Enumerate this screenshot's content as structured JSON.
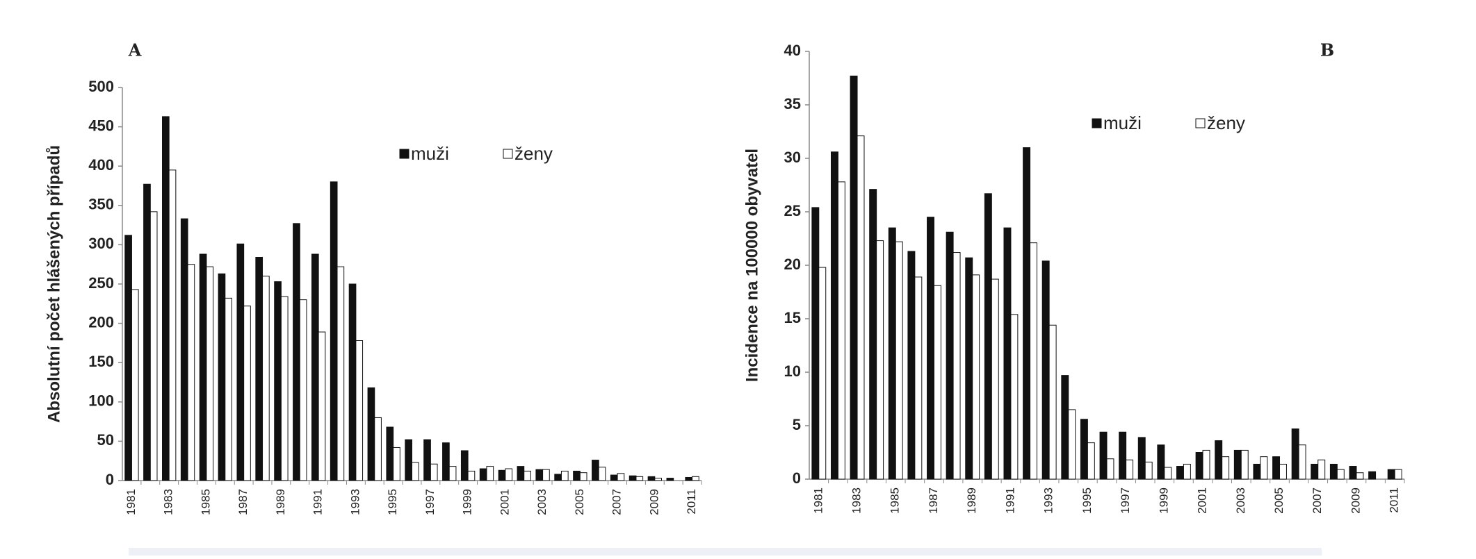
{
  "chart_data": [
    {
      "type": "bar",
      "label": "A",
      "y_label": "Absolutní počet hlášených případů",
      "categories": [
        "1981",
        null,
        "1983",
        null,
        "1985",
        null,
        "1987",
        null,
        "1989",
        null,
        "1991",
        null,
        "1993",
        null,
        "1995",
        null,
        "1997",
        null,
        "1999",
        null,
        "2001",
        null,
        "2003",
        null,
        "2005",
        null,
        "2007",
        null,
        "2009",
        null,
        "2011"
      ],
      "series": [
        {
          "name": "muži",
          "color": "#111111",
          "values": [
            312,
            377,
            463,
            333,
            288,
            263,
            301,
            284,
            253,
            327,
            288,
            380,
            250,
            118,
            68,
            52,
            52,
            48,
            38,
            15,
            13,
            18,
            14,
            8,
            12,
            26,
            7,
            6,
            5,
            3,
            4
          ]
        },
        {
          "name": "ženy",
          "color": "#ffffff",
          "values": [
            243,
            342,
            395,
            275,
            272,
            232,
            222,
            260,
            234,
            230,
            189,
            272,
            178,
            80,
            42,
            23,
            21,
            18,
            12,
            18,
            15,
            12,
            14,
            12,
            10,
            17,
            9,
            5,
            3,
            0,
            5
          ]
        }
      ],
      "ylim": [
        0,
        500
      ],
      "yticks": [
        0,
        50,
        100,
        150,
        200,
        250,
        300,
        350,
        400,
        450,
        500
      ]
    },
    {
      "type": "bar",
      "label": "B",
      "y_label": "Incidence na 100000 obyvatel",
      "categories": [
        "1981",
        null,
        "1983",
        null,
        "1985",
        null,
        "1987",
        null,
        "1989",
        null,
        "1991",
        null,
        "1993",
        null,
        "1995",
        null,
        "1997",
        null,
        "1999",
        null,
        "2001",
        null,
        "2003",
        null,
        "2005",
        null,
        "2007",
        null,
        "2009",
        null,
        "2011"
      ],
      "series": [
        {
          "name": "muži",
          "color": "#111111",
          "values": [
            25.4,
            30.6,
            37.7,
            27.1,
            23.5,
            21.3,
            24.5,
            23.1,
            20.7,
            26.7,
            23.5,
            31.0,
            20.4,
            9.7,
            5.6,
            4.4,
            4.4,
            3.9,
            3.2,
            1.2,
            2.5,
            3.6,
            2.7,
            1.4,
            2.1,
            4.7,
            1.4,
            1.4,
            1.2,
            0.7,
            0.9
          ]
        },
        {
          "name": "ženy",
          "color": "#ffffff",
          "values": [
            19.8,
            27.8,
            32.1,
            22.3,
            22.2,
            18.9,
            18.1,
            21.2,
            19.1,
            18.7,
            15.4,
            22.1,
            14.4,
            6.5,
            3.4,
            1.9,
            1.8,
            1.6,
            1.1,
            1.4,
            2.7,
            2.1,
            2.7,
            2.1,
            1.4,
            3.2,
            1.8,
            0.9,
            0.6,
            0,
            0.9
          ]
        }
      ],
      "ylim": [
        0,
        40
      ],
      "yticks": [
        0,
        5,
        10,
        15,
        20,
        25,
        30,
        35,
        40
      ]
    }
  ]
}
